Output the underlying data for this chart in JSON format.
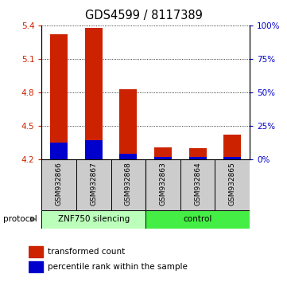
{
  "title": "GDS4599 / 8117389",
  "samples": [
    "GSM932866",
    "GSM932867",
    "GSM932868",
    "GSM932863",
    "GSM932864",
    "GSM932865"
  ],
  "red_values": [
    5.32,
    5.38,
    4.83,
    4.31,
    4.3,
    4.42
  ],
  "blue_values": [
    4.35,
    4.37,
    4.25,
    4.22,
    4.22,
    4.22
  ],
  "ymin": 4.2,
  "ymax": 5.4,
  "y_ticks_left": [
    4.2,
    4.5,
    4.8,
    5.1,
    5.4
  ],
  "y_ticks_right_vals": [
    0,
    25,
    50,
    75,
    100
  ],
  "groups": [
    {
      "label": "ZNF750 silencing",
      "start": 0,
      "end": 3,
      "color": "#bbffbb"
    },
    {
      "label": "control",
      "start": 3,
      "end": 6,
      "color": "#44ee44"
    }
  ],
  "protocol_label": "protocol",
  "legend_red": "transformed count",
  "legend_blue": "percentile rank within the sample",
  "bar_width": 0.5,
  "red_color": "#cc2200",
  "blue_color": "#0000cc",
  "separator_col": 2,
  "bg_label": "#cccccc",
  "group1_color": "#bbffbb",
  "group2_color": "#44ee44"
}
